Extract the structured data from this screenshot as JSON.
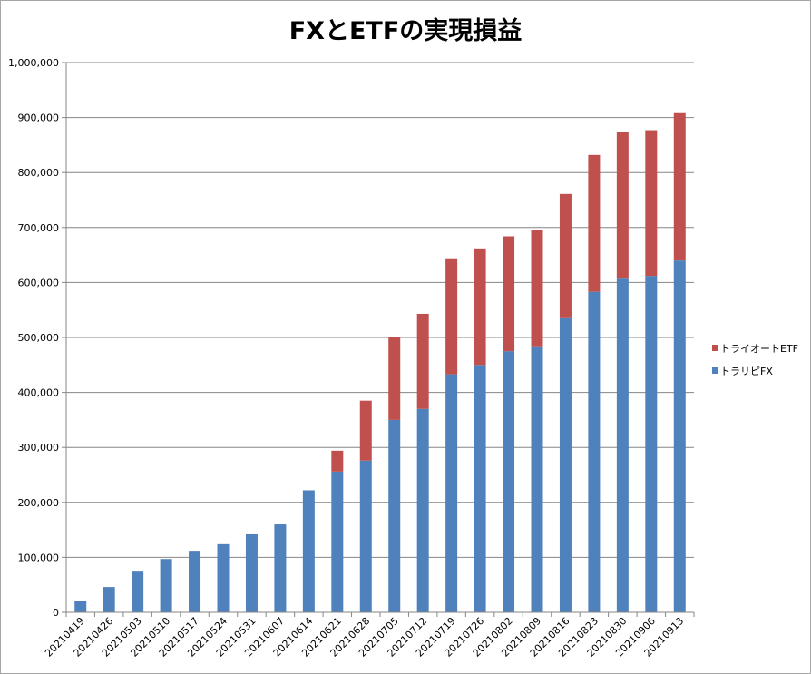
{
  "chart_data": {
    "type": "bar",
    "stacked": true,
    "title": "FXとETFの実現損益",
    "xlabel": "",
    "ylabel": "",
    "ylim": [
      0,
      1000000
    ],
    "yticks": [
      0,
      100000,
      200000,
      300000,
      400000,
      500000,
      600000,
      700000,
      800000,
      900000,
      1000000
    ],
    "ytick_labels": [
      "0",
      "100,000",
      "200,000",
      "300,000",
      "400,000",
      "500,000",
      "600,000",
      "700,000",
      "800,000",
      "900,000",
      "1,000,000"
    ],
    "grid": true,
    "legend_position": "right",
    "categories": [
      "20210419",
      "20210426",
      "20210503",
      "20210510",
      "20210517",
      "20210524",
      "20210531",
      "20210607",
      "20210614",
      "20210621",
      "20210628",
      "20210705",
      "20210712",
      "20210719",
      "20210726",
      "20210802",
      "20210809",
      "20210816",
      "20210823",
      "20210830",
      "20210906",
      "20210913"
    ],
    "series": [
      {
        "name": "トラリピFX",
        "color": "#4f81bd",
        "values": [
          20000,
          46000,
          74000,
          97000,
          112000,
          124000,
          142000,
          160000,
          222000,
          256000,
          276000,
          350000,
          370000,
          433000,
          450000,
          475000,
          484000,
          535000,
          583000,
          607000,
          612000,
          640000
        ]
      },
      {
        "name": "トライオートETF",
        "color": "#c0504d",
        "values": [
          0,
          0,
          0,
          0,
          0,
          0,
          0,
          0,
          0,
          38000,
          109000,
          150000,
          173000,
          211000,
          212000,
          209000,
          211000,
          226000,
          249000,
          266000,
          265000,
          268000
        ]
      }
    ]
  }
}
